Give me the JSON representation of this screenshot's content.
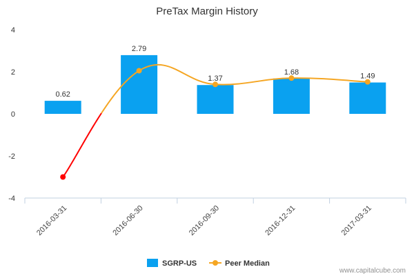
{
  "chart_data": {
    "type": "bar",
    "title": "PreTax Margin History",
    "categories": [
      "2016-03-31",
      "2016-06-30",
      "2016-09-30",
      "2016-12-31",
      "2017-03-31"
    ],
    "series": [
      {
        "name": "SGRP-US",
        "type": "bar",
        "values": [
          0.62,
          2.79,
          1.37,
          1.68,
          1.49
        ]
      },
      {
        "name": "Peer Median",
        "type": "line",
        "values": [
          -3.0,
          2.05,
          1.4,
          1.7,
          1.52
        ]
      }
    ],
    "data_labels": [
      "0.62",
      "2.79",
      "1.37",
      "1.68",
      "1.49"
    ],
    "yticks": [
      "4",
      "2",
      "0",
      "-2",
      "-4"
    ],
    "ylim": [
      -4,
      4
    ],
    "xlabel": "",
    "ylabel": "",
    "legend_position": "bottom",
    "grid": false,
    "colors": {
      "bar": "#0aa1f0",
      "line": "#f5a623",
      "line_down": "#ff0000"
    },
    "credit": "www.capitalcube.com"
  }
}
